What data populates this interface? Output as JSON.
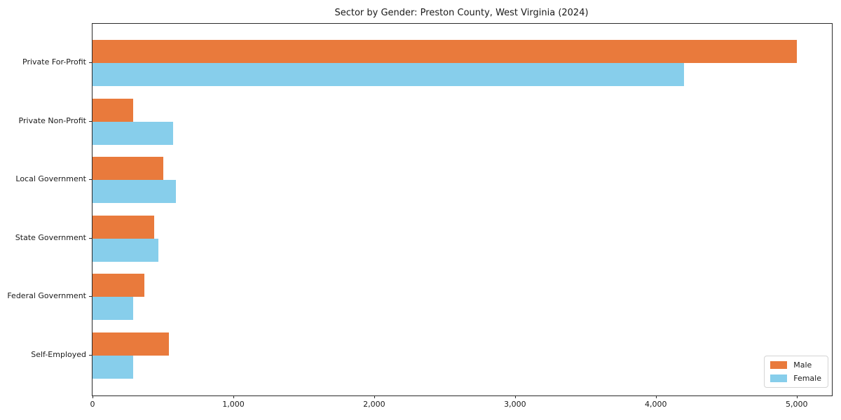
{
  "chart_data": {
    "type": "bar",
    "orientation": "horizontal",
    "title": "Sector by Gender: Preston County, West Virginia (2024)",
    "categories": [
      "Private For-Profit",
      "Private Non-Profit",
      "Local Government",
      "State Government",
      "Federal Government",
      "Self-Employed"
    ],
    "series": [
      {
        "name": "Male",
        "color": "#e97a3c",
        "values": [
          5000,
          290,
          500,
          440,
          370,
          540
        ]
      },
      {
        "name": "Female",
        "color": "#87ceeb",
        "values": [
          4200,
          570,
          590,
          470,
          290,
          290
        ]
      }
    ],
    "xlabel": "",
    "ylabel": "",
    "xlim": [
      0,
      5250
    ],
    "xticks": {
      "values": [
        0,
        1000,
        2000,
        3000,
        4000,
        5000
      ],
      "labels": [
        "0",
        "1,000",
        "2,000",
        "3,000",
        "4,000",
        "5,000"
      ]
    },
    "grid": false,
    "legend": {
      "position": "lower right",
      "entries": [
        {
          "label": "Male",
          "color": "#e97a3c"
        },
        {
          "label": "Female",
          "color": "#87ceeb"
        }
      ]
    }
  }
}
